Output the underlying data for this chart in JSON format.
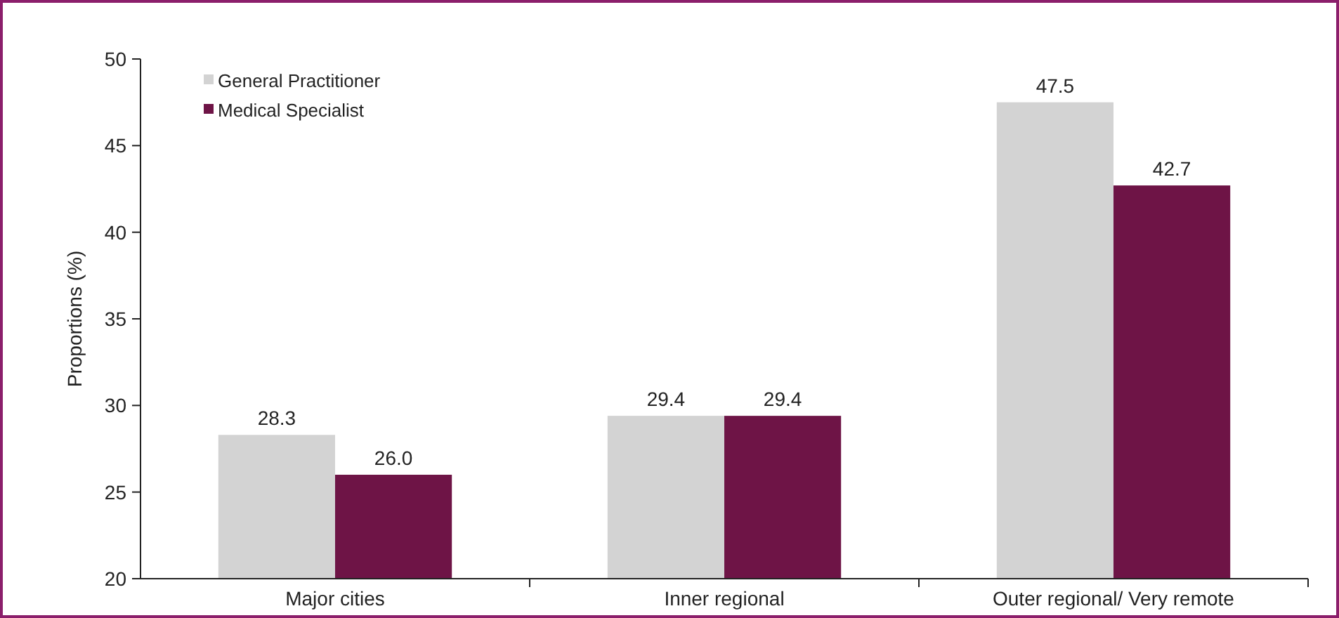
{
  "chart_data": {
    "type": "bar",
    "ylabel": "Proportions (%)",
    "categories": [
      "Major cities",
      "Inner regional",
      "Outer regional/ Very remote"
    ],
    "series": [
      {
        "name": "General Practitioner",
        "color": "#d3d3d3",
        "values": [
          28.3,
          29.4,
          47.5
        ],
        "value_labels": [
          "28.3",
          "29.4",
          "47.5"
        ]
      },
      {
        "name": "Medical Specialist",
        "color": "#6e1446",
        "values": [
          26.0,
          29.4,
          42.7
        ],
        "value_labels": [
          "26.0",
          "29.4",
          "42.7"
        ]
      }
    ],
    "ylim": [
      20,
      50
    ],
    "yticks": [
      20,
      25,
      30,
      35,
      40,
      45,
      50
    ],
    "grid": false,
    "legend": "top left"
  }
}
